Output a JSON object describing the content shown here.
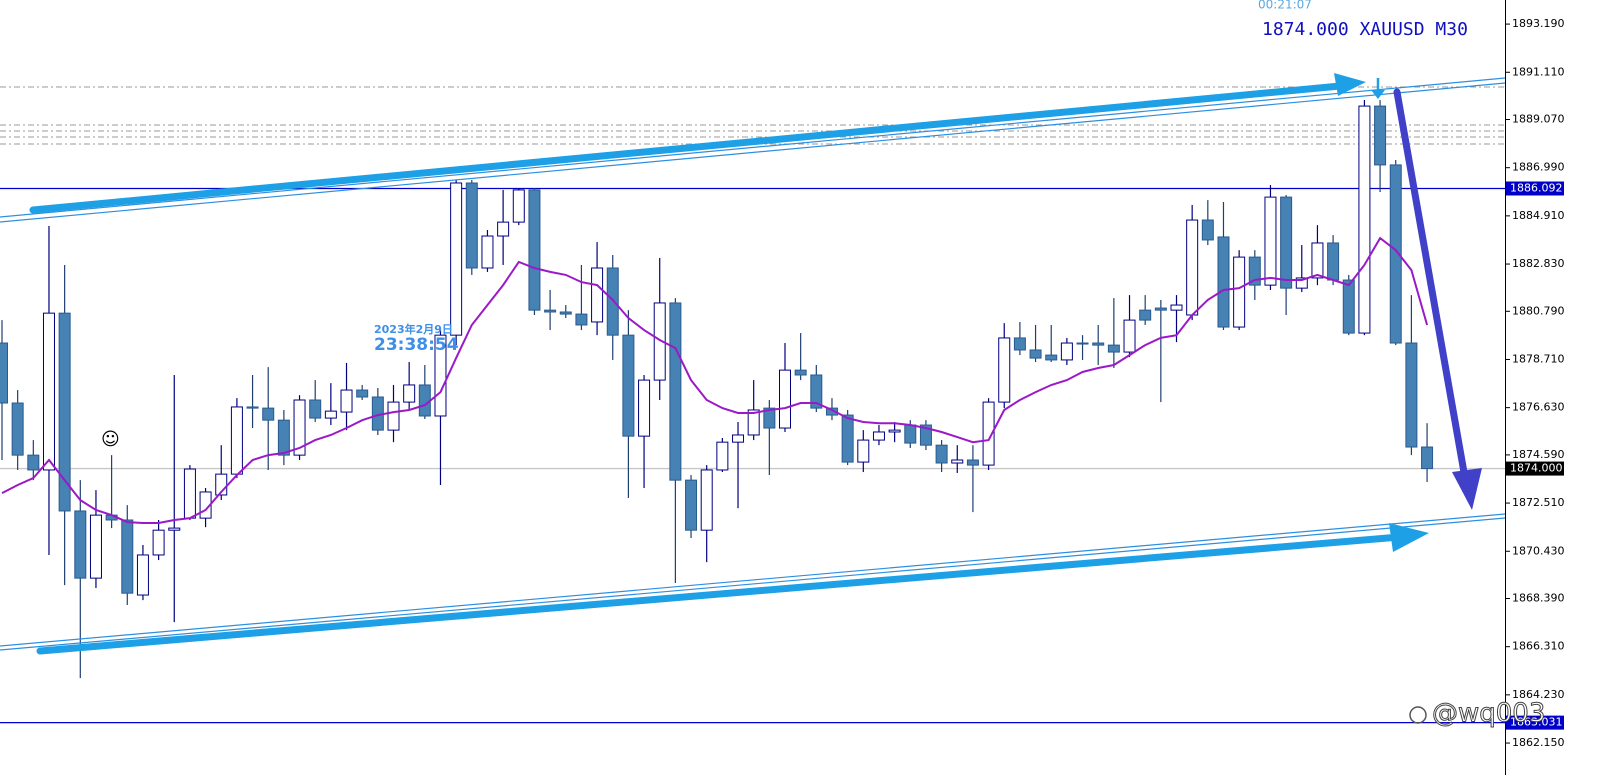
{
  "chart_data": {
    "type": "candlestick",
    "title": "1874.000 XAUUSD M30",
    "subtitle": "00:21:07",
    "annotations": [
      "2023年2月9日",
      "23:38:54",
      "☺",
      "@wq003"
    ],
    "up_color": "#ffffff",
    "down_color": "#4682b4",
    "ylim": [
      1860.77,
      1894.23
    ],
    "yticks": [
      {
        "value": 1893.19,
        "label": "1893.190"
      },
      {
        "value": 1891.11,
        "label": "1891.110"
      },
      {
        "value": 1889.07,
        "label": "1889.070"
      },
      {
        "value": 1886.99,
        "label": "1886.990"
      },
      {
        "value": 1884.91,
        "label": "1884.910"
      },
      {
        "value": 1882.83,
        "label": "1882.830"
      },
      {
        "value": 1880.79,
        "label": "1880.790"
      },
      {
        "value": 1878.71,
        "label": "1878.710"
      },
      {
        "value": 1876.63,
        "label": "1876.630"
      },
      {
        "value": 1874.59,
        "label": "1874.590"
      },
      {
        "value": 1872.51,
        "label": "1872.510"
      },
      {
        "value": 1870.43,
        "label": "1870.430"
      },
      {
        "value": 1868.39,
        "label": "1868.390"
      },
      {
        "value": 1866.31,
        "label": "1866.310"
      },
      {
        "value": 1864.23,
        "label": "1864.230"
      },
      {
        "value": 1862.15,
        "label": "1862.150"
      }
    ],
    "price_lines": [
      1886.092,
      {
        "value": 1874,
        "label": "1874.000"
      },
      1863.031
    ],
    "price_line_colors": [
      "#0000c8",
      "#c8c8c8",
      "#0000c8"
    ],
    "price_label_colors": [
      "#0000c8",
      "#000000",
      "#0000c8"
    ],
    "open": [
      1879.42,
      1876.83,
      1874.58,
      1873.94,
      1880.71,
      1872.17,
      1869.27,
      1871.99,
      1871.78,
      1868.54,
      1870.27,
      1871.34,
      1871.86,
      1871.86,
      1872.86,
      1873.76,
      1876.66,
      1876.61,
      1876.09,
      1874.58,
      1876.96,
      1876.18,
      1876.44,
      1877.39,
      1877.09,
      1875.66,
      1876.87,
      1877.61,
      1876.27,
      1879.76,
      1886.33,
      1882.66,
      1884.04,
      1884.64,
      1886.03,
      1880.84,
      1880.76,
      1880.67,
      1880.33,
      1882.66,
      1879.76,
      1875.4,
      1877.82,
      1881.15,
      1873.5,
      1871.34,
      1873.94,
      1875.14,
      1875.45,
      1876.61,
      1875.75,
      1878.25,
      1878.04,
      1876.61,
      1876.31,
      1874.28,
      1875.23,
      1875.58,
      1875.88,
      1875.88,
      1875.01,
      1874.24,
      1874.37,
      1874.15,
      1876.87,
      1879.64,
      1879.12,
      1878.9,
      1878.69,
      1879.42,
      1879.42,
      1879.33,
      1879.03,
      1880.84,
      1880.93,
      1880.84,
      1880.63,
      1884.73,
      1884.0,
      1880.11,
      1883.13,
      1881.92,
      1885.72,
      1881.79,
      1882.23,
      1883.74,
      1882.14,
      1879.85,
      1889.65,
      1887.11,
      1879.42,
      1874.93
    ],
    "high": [
      1880.41,
      1877.39,
      1875.23,
      1884.47,
      1882.79,
      1873.5,
      1873.07,
      1874.58,
      1872.42,
      1870.7,
      1871.78,
      1878.04,
      1874.15,
      1873.16,
      1875.01,
      1877.04,
      1878.04,
      1878.38,
      1876.53,
      1877.17,
      1877.82,
      1877.69,
      1878.56,
      1877.61,
      1877.48,
      1877.61,
      1878.6,
      1878.47,
      1879.98,
      1886.46,
      1886.46,
      1884.3,
      1886.03,
      1886.11,
      1886.11,
      1881.71,
      1881.06,
      1882.79,
      1883.78,
      1883.22,
      1880.84,
      1878.04,
      1883.09,
      1881.36,
      1873.72,
      1874.15,
      1875.32,
      1876.01,
      1877.82,
      1876.96,
      1879.42,
      1879.85,
      1878.47,
      1877.04,
      1876.53,
      1875.66,
      1875.88,
      1876.01,
      1876.09,
      1876.09,
      1875.23,
      1875.01,
      1875.01,
      1877.04,
      1880.28,
      1880.33,
      1880.2,
      1880.2,
      1879.64,
      1879.76,
      1880.2,
      1881.36,
      1881.49,
      1881.49,
      1881.28,
      1881.49,
      1885.38,
      1885.59,
      1885.51,
      1883.43,
      1883.43,
      1886.24,
      1885.81,
      1883.65,
      1884.51,
      1884.08,
      1882.36,
      1889.91,
      1889.91,
      1887.32,
      1881.49,
      1875.96
    ],
    "low": [
      1874.37,
      1873.94,
      1873.5,
      1870.27,
      1868.97,
      1864.95,
      1868.84,
      1871.43,
      1868.11,
      1868.32,
      1870.05,
      1867.37,
      1871.78,
      1871.47,
      1872.64,
      1873.59,
      1875.75,
      1873.94,
      1874.15,
      1874.37,
      1876.01,
      1875.88,
      1875.66,
      1876.96,
      1875.45,
      1875.14,
      1876.53,
      1876.14,
      1873.29,
      1879.33,
      1882.36,
      1882.49,
      1882.79,
      1884.51,
      1880.63,
      1879.98,
      1880.5,
      1879.98,
      1879.76,
      1878.69,
      1872.73,
      1873.16,
      1876.96,
      1869.06,
      1871.0,
      1869.96,
      1873.85,
      1872.29,
      1875.23,
      1873.72,
      1875.58,
      1877.82,
      1876.44,
      1876.09,
      1874.15,
      1873.85,
      1875.01,
      1875.14,
      1874.89,
      1874.8,
      1873.85,
      1873.81,
      1872.12,
      1873.94,
      1876.61,
      1878.9,
      1878.6,
      1878.6,
      1878.47,
      1878.69,
      1878.47,
      1878.34,
      1878.81,
      1880.2,
      1876.87,
      1879.46,
      1880.41,
      1883.65,
      1879.98,
      1879.98,
      1881.28,
      1881.71,
      1880.63,
      1881.62,
      1881.92,
      1881.92,
      1879.76,
      1879.76,
      1885.94,
      1879.33,
      1874.58,
      1873.42
    ],
    "close": [
      1876.83,
      1874.58,
      1873.94,
      1880.71,
      1872.17,
      1869.27,
      1871.99,
      1871.78,
      1868.62,
      1870.27,
      1871.34,
      1871.43,
      1873.98,
      1872.99,
      1873.76,
      1876.66,
      1876.61,
      1876.09,
      1874.58,
      1876.96,
      1876.18,
      1876.48,
      1877.39,
      1877.09,
      1875.66,
      1876.87,
      1877.61,
      1876.27,
      1879.76,
      1886.33,
      1882.66,
      1884.04,
      1884.64,
      1886.03,
      1880.84,
      1880.76,
      1880.67,
      1880.2,
      1882.66,
      1879.76,
      1875.4,
      1877.82,
      1881.15,
      1873.5,
      1871.34,
      1873.94,
      1875.14,
      1875.45,
      1876.53,
      1875.75,
      1878.25,
      1878.04,
      1876.61,
      1876.31,
      1874.28,
      1875.23,
      1875.58,
      1875.66,
      1875.1,
      1875.01,
      1874.24,
      1874.37,
      1874.15,
      1876.87,
      1879.64,
      1879.12,
      1878.77,
      1878.69,
      1879.42,
      1879.38,
      1879.33,
      1879.03,
      1880.41,
      1880.41,
      1880.84,
      1881.06,
      1884.73,
      1883.87,
      1880.11,
      1883.13,
      1881.92,
      1885.72,
      1881.79,
      1882.23,
      1883.74,
      1882.14,
      1879.85,
      1889.65,
      1887.11,
      1879.42,
      1874.93,
      1874.0
    ],
    "moving_average": {
      "color": "#9b19c8",
      "values": [
        1872.94,
        1873.29,
        1873.59,
        1874.37,
        1873.5,
        1872.64,
        1872.21,
        1871.99,
        1871.69,
        1871.65,
        1871.65,
        1871.78,
        1871.86,
        1872.21,
        1872.99,
        1873.72,
        1874.37,
        1874.58,
        1874.67,
        1874.89,
        1875.23,
        1875.45,
        1875.75,
        1876.09,
        1876.31,
        1876.44,
        1876.53,
        1876.74,
        1877.3,
        1878.77,
        1880.2,
        1881.06,
        1881.92,
        1882.92,
        1882.66,
        1882.49,
        1882.36,
        1882.05,
        1881.92,
        1881.28,
        1880.5,
        1879.98,
        1879.55,
        1879.2,
        1877.82,
        1876.96,
        1876.61,
        1876.4,
        1876.4,
        1876.53,
        1876.61,
        1876.83,
        1876.83,
        1876.53,
        1876.18,
        1876.01,
        1875.96,
        1875.96,
        1875.88,
        1875.75,
        1875.58,
        1875.36,
        1875.14,
        1875.23,
        1876.53,
        1876.96,
        1877.3,
        1877.61,
        1877.82,
        1878.17,
        1878.34,
        1878.47,
        1878.9,
        1879.33,
        1879.64,
        1879.76,
        1880.63,
        1881.28,
        1881.71,
        1881.79,
        1882.14,
        1882.23,
        1882.14,
        1882.14,
        1882.36,
        1882.14,
        1881.92,
        1882.79,
        1883.95,
        1883.43,
        1882.57,
        1880.2
      ]
    }
  }
}
